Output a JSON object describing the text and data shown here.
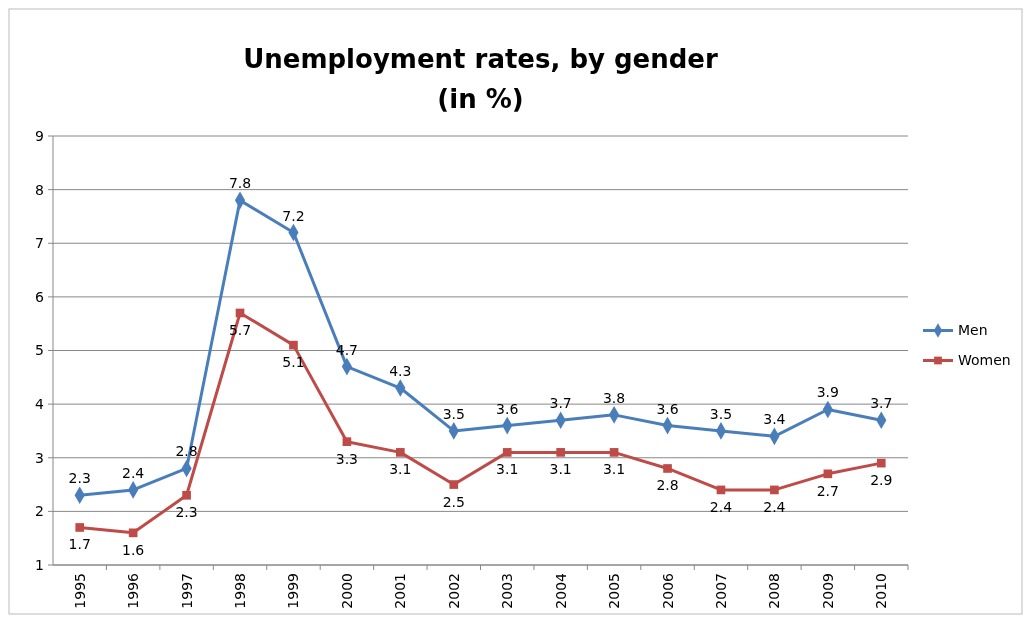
{
  "chart_data": {
    "type": "line",
    "title": "Unemployment rates, by gender\n(in %)",
    "categories": [
      "1995",
      "1996",
      "1997",
      "1998",
      "1999",
      "2000",
      "2001",
      "2002",
      "2003",
      "2004",
      "2005",
      "2006",
      "2007",
      "2008",
      "2009",
      "2010"
    ],
    "series": [
      {
        "name": "Men",
        "color": "#4a7ebb",
        "marker": "diamond",
        "values": [
          2.3,
          2.4,
          2.8,
          7.8,
          7.2,
          4.7,
          4.3,
          3.5,
          3.6,
          3.7,
          3.8,
          3.6,
          3.5,
          3.4,
          3.9,
          3.7
        ]
      },
      {
        "name": "Women",
        "color": "#be4b48",
        "marker": "square",
        "values": [
          1.7,
          1.6,
          2.3,
          5.7,
          5.1,
          3.3,
          3.1,
          2.5,
          3.1,
          3.1,
          3.1,
          2.8,
          2.4,
          2.4,
          2.7,
          2.9
        ]
      }
    ],
    "ylim": [
      1,
      9
    ],
    "yticks": [
      1,
      2,
      3,
      4,
      5,
      6,
      7,
      8,
      9
    ],
    "grid": "y",
    "legend": "right",
    "data_labels": true,
    "line_style": "solid"
  }
}
